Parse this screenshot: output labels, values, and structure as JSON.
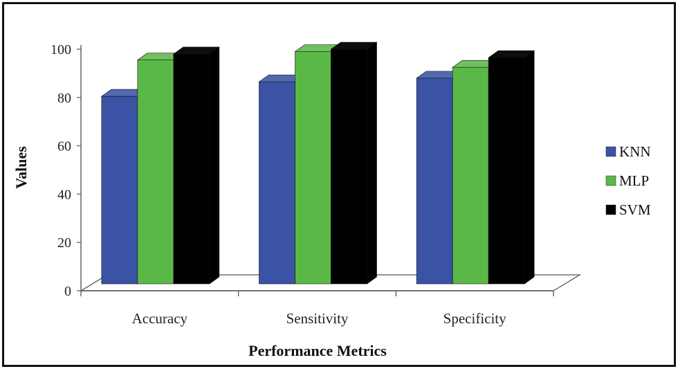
{
  "chart_data": {
    "type": "bar",
    "title": "",
    "xlabel": "Performance Metrics",
    "ylabel": "Values",
    "ylim": [
      0,
      100
    ],
    "yticks": [
      "0",
      "20",
      "40",
      "60",
      "80",
      "100"
    ],
    "categories": [
      "Accuracy",
      "Sensitivity",
      "Specificity"
    ],
    "series": [
      {
        "name": "KNN",
        "values": [
          80.5,
          86.5,
          88
        ],
        "color": "#3a53a4"
      },
      {
        "name": "MLP",
        "values": [
          95.5,
          99,
          92.5
        ],
        "color": "#5ab946"
      },
      {
        "name": "SVM",
        "values": [
          98,
          100,
          96.5
        ],
        "color": "#000000"
      }
    ],
    "legend_position": "right",
    "grid": false
  }
}
